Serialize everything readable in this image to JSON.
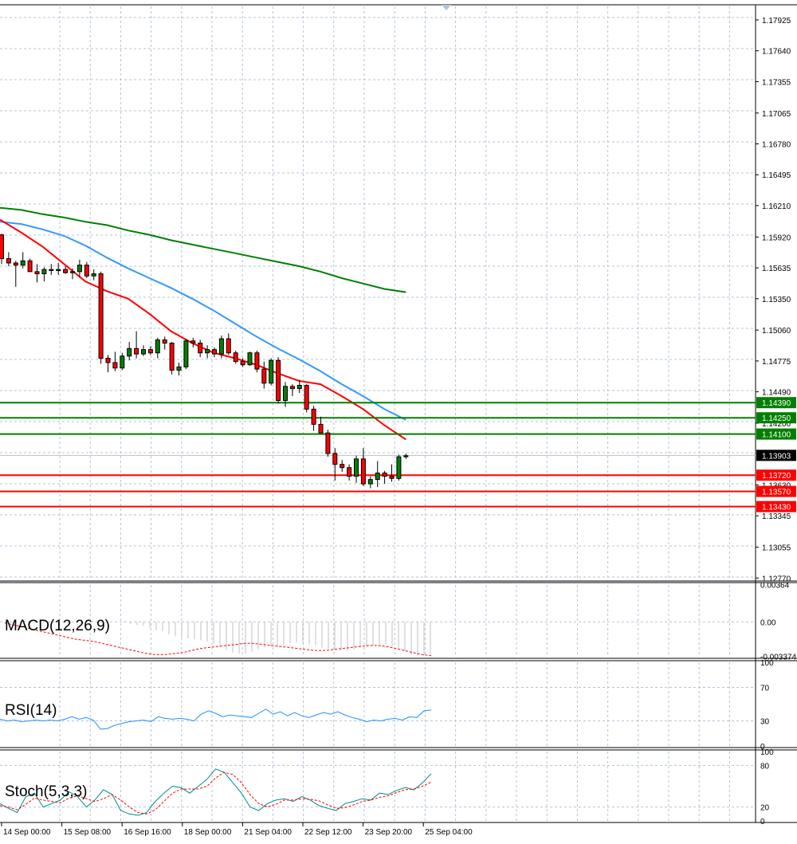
{
  "chart_data": [
    {
      "type": "candlestick",
      "panel": "price",
      "x_labels": [
        "14 Sep 00:00",
        "15 Sep 08:00",
        "16 Sep 16:00",
        "18 Sep 00:00",
        "21 Sep 04:00",
        "22 Sep 12:00",
        "23 Sep 20:00",
        "25 Sep 04:00"
      ],
      "y_ticks": [
        "1.17925",
        "1.17640",
        "1.17355",
        "1.17065",
        "1.16780",
        "1.16495",
        "1.16210",
        "1.15920",
        "1.15635",
        "1.15350",
        "1.15060",
        "1.14775",
        "1.14490",
        "1.14200",
        "1.13630",
        "1.13345",
        "1.13055",
        "1.12770"
      ],
      "ylim": [
        1.1275,
        1.1805
      ],
      "current_price": {
        "label": "1.13903",
        "value": 1.13903,
        "color": "#000000"
      },
      "levels": [
        {
          "label": "1.14390",
          "value": 1.1439,
          "color": "#008000"
        },
        {
          "label": "1.14250",
          "value": 1.1425,
          "color": "#008000"
        },
        {
          "label": "1.14100",
          "value": 1.141,
          "color": "#008000"
        },
        {
          "label": "1.13720",
          "value": 1.1372,
          "color": "#ff0000"
        },
        {
          "label": "1.13570",
          "value": 1.1357,
          "color": "#ff0000"
        },
        {
          "label": "1.13430",
          "value": 1.1343,
          "color": "#ff0000"
        }
      ],
      "moving_averages": [
        {
          "color": "#008000",
          "values": [
            1.1619,
            1.1617,
            1.1613,
            1.161,
            1.1606,
            1.1603,
            1.1598,
            1.1594,
            1.1589,
            1.1585,
            1.1581,
            1.1577,
            1.1573,
            1.1569,
            1.1565,
            1.156,
            1.1554,
            1.1549,
            1.1544,
            1.1541
          ]
        },
        {
          "color": "#3399ff",
          "values": [
            1.1606,
            1.1604,
            1.1599,
            1.1593,
            1.1584,
            1.1573,
            1.1563,
            1.1554,
            1.1545,
            1.1535,
            1.1524,
            1.1512,
            1.15,
            1.1489,
            1.1479,
            1.1468,
            1.1456,
            1.1445,
            1.1433,
            1.1423
          ]
        },
        {
          "color": "#ff0000",
          "values": [
            1.1608,
            1.1596,
            1.1583,
            1.1567,
            1.1551,
            1.1542,
            1.1535,
            1.1521,
            1.1505,
            1.1494,
            1.1485,
            1.148,
            1.1474,
            1.1466,
            1.1459,
            1.1456,
            1.1445,
            1.1433,
            1.1418,
            1.1405
          ]
        }
      ],
      "candles": [
        {
          "o": 1.1594,
          "h": 1.1595,
          "l": 1.1567,
          "c": 1.1572
        },
        {
          "o": 1.1572,
          "h": 1.1578,
          "l": 1.1565,
          "c": 1.1568
        },
        {
          "o": 1.1568,
          "h": 1.157,
          "l": 1.1546,
          "c": 1.1566
        },
        {
          "o": 1.1566,
          "h": 1.1578,
          "l": 1.1563,
          "c": 1.157
        },
        {
          "o": 1.157,
          "h": 1.1572,
          "l": 1.156,
          "c": 1.156
        },
        {
          "o": 1.156,
          "h": 1.1567,
          "l": 1.155,
          "c": 1.1558
        },
        {
          "o": 1.1558,
          "h": 1.1564,
          "l": 1.1551,
          "c": 1.1562
        },
        {
          "o": 1.1562,
          "h": 1.1567,
          "l": 1.1557,
          "c": 1.1561
        },
        {
          "o": 1.1561,
          "h": 1.1568,
          "l": 1.1557,
          "c": 1.1562
        },
        {
          "o": 1.1562,
          "h": 1.1565,
          "l": 1.1558,
          "c": 1.1559
        },
        {
          "o": 1.1559,
          "h": 1.1563,
          "l": 1.1553,
          "c": 1.156
        },
        {
          "o": 1.156,
          "h": 1.1571,
          "l": 1.1555,
          "c": 1.1566
        },
        {
          "o": 1.1566,
          "h": 1.1569,
          "l": 1.1554,
          "c": 1.1556
        },
        {
          "o": 1.1556,
          "h": 1.1562,
          "l": 1.1552,
          "c": 1.1558
        },
        {
          "o": 1.1558,
          "h": 1.156,
          "l": 1.1475,
          "c": 1.148
        },
        {
          "o": 1.148,
          "h": 1.1483,
          "l": 1.1467,
          "c": 1.1476
        },
        {
          "o": 1.1476,
          "h": 1.1486,
          "l": 1.1468,
          "c": 1.1471
        },
        {
          "o": 1.1471,
          "h": 1.1485,
          "l": 1.1469,
          "c": 1.1482
        },
        {
          "o": 1.1482,
          "h": 1.1495,
          "l": 1.1478,
          "c": 1.1489
        },
        {
          "o": 1.1489,
          "h": 1.1505,
          "l": 1.148,
          "c": 1.1484
        },
        {
          "o": 1.1484,
          "h": 1.1492,
          "l": 1.1482,
          "c": 1.1488
        },
        {
          "o": 1.1488,
          "h": 1.1491,
          "l": 1.1483,
          "c": 1.1485
        },
        {
          "o": 1.1485,
          "h": 1.1499,
          "l": 1.148,
          "c": 1.1497
        },
        {
          "o": 1.1497,
          "h": 1.15,
          "l": 1.1488,
          "c": 1.1494
        },
        {
          "o": 1.1494,
          "h": 1.1495,
          "l": 1.1465,
          "c": 1.1469
        },
        {
          "o": 1.1469,
          "h": 1.1476,
          "l": 1.1464,
          "c": 1.1472
        },
        {
          "o": 1.1472,
          "h": 1.1498,
          "l": 1.147,
          "c": 1.1496
        },
        {
          "o": 1.1496,
          "h": 1.1499,
          "l": 1.149,
          "c": 1.1494
        },
        {
          "o": 1.1494,
          "h": 1.1497,
          "l": 1.1481,
          "c": 1.1485
        },
        {
          "o": 1.1485,
          "h": 1.1492,
          "l": 1.148,
          "c": 1.1488
        },
        {
          "o": 1.1488,
          "h": 1.149,
          "l": 1.1481,
          "c": 1.1484
        },
        {
          "o": 1.1484,
          "h": 1.1501,
          "l": 1.148,
          "c": 1.1498
        },
        {
          "o": 1.1498,
          "h": 1.1503,
          "l": 1.1483,
          "c": 1.1485
        },
        {
          "o": 1.1485,
          "h": 1.1487,
          "l": 1.1475,
          "c": 1.1477
        },
        {
          "o": 1.1477,
          "h": 1.148,
          "l": 1.1472,
          "c": 1.1474
        },
        {
          "o": 1.1474,
          "h": 1.1486,
          "l": 1.1473,
          "c": 1.1485
        },
        {
          "o": 1.1485,
          "h": 1.1487,
          "l": 1.1467,
          "c": 1.147
        },
        {
          "o": 1.147,
          "h": 1.1477,
          "l": 1.1452,
          "c": 1.1457
        },
        {
          "o": 1.1457,
          "h": 1.148,
          "l": 1.1455,
          "c": 1.1478
        },
        {
          "o": 1.1478,
          "h": 1.1481,
          "l": 1.1438,
          "c": 1.1441
        },
        {
          "o": 1.1441,
          "h": 1.1458,
          "l": 1.1435,
          "c": 1.1454
        },
        {
          "o": 1.1454,
          "h": 1.1456,
          "l": 1.1445,
          "c": 1.1452
        },
        {
          "o": 1.1452,
          "h": 1.146,
          "l": 1.1448,
          "c": 1.1455
        },
        {
          "o": 1.1455,
          "h": 1.1456,
          "l": 1.143,
          "c": 1.1433
        },
        {
          "o": 1.1433,
          "h": 1.1436,
          "l": 1.1413,
          "c": 1.1419
        },
        {
          "o": 1.1419,
          "h": 1.1426,
          "l": 1.1414,
          "c": 1.1411
        },
        {
          "o": 1.1411,
          "h": 1.1414,
          "l": 1.1389,
          "c": 1.1392
        },
        {
          "o": 1.1392,
          "h": 1.1397,
          "l": 1.1367,
          "c": 1.1382
        },
        {
          "o": 1.1382,
          "h": 1.1386,
          "l": 1.1375,
          "c": 1.1379
        },
        {
          "o": 1.1379,
          "h": 1.1382,
          "l": 1.1367,
          "c": 1.1371
        },
        {
          "o": 1.1371,
          "h": 1.139,
          "l": 1.1365,
          "c": 1.1387
        },
        {
          "o": 1.1387,
          "h": 1.1397,
          "l": 1.1362,
          "c": 1.1364
        },
        {
          "o": 1.1364,
          "h": 1.1371,
          "l": 1.136,
          "c": 1.1368
        },
        {
          "o": 1.1368,
          "h": 1.1385,
          "l": 1.1361,
          "c": 1.1374
        },
        {
          "o": 1.1374,
          "h": 1.1376,
          "l": 1.1364,
          "c": 1.1371
        },
        {
          "o": 1.1371,
          "h": 1.1382,
          "l": 1.1366,
          "c": 1.1369
        },
        {
          "o": 1.1369,
          "h": 1.1391,
          "l": 1.1367,
          "c": 1.1389
        },
        {
          "o": 1.1389,
          "h": 1.1392,
          "l": 1.1387,
          "c": 1.139
        }
      ]
    },
    {
      "type": "bar",
      "panel": "macd",
      "label": "MACD(12,26,9)",
      "y_ticks": [
        "0.00364",
        "0.00",
        "-0.003374"
      ],
      "ylim": [
        -0.0034,
        0.0036
      ],
      "histogram_values": [
        -0.0001,
        -0.0002,
        -0.0003,
        -0.0004,
        -0.0006,
        -0.0008,
        -0.0009,
        -0.0012,
        -0.0014,
        -0.0015,
        -0.0016,
        -0.0017,
        -0.0018,
        -0.0019,
        -0.0021,
        -0.0024,
        -0.0027,
        -0.003,
        -0.0031,
        -0.0031,
        -0.0029,
        -0.0027,
        -0.0025,
        -0.0024,
        -0.0023,
        -0.0022,
        -0.0021,
        -0.002,
        -0.0021,
        -0.0022,
        -0.0023,
        -0.0025,
        -0.0026,
        -0.0027,
        -0.0028,
        -0.0028,
        -0.0027,
        -0.0025,
        -0.0024,
        -0.0023,
        -0.0022,
        -0.0022,
        -0.0024,
        -0.0026,
        -0.0029,
        -0.0032,
        -0.0033,
        -0.0033,
        -0.0032
      ],
      "signal_values": [
        -0.0001,
        -0.0003,
        -0.0005,
        -0.0007,
        -0.0009,
        -0.0011,
        -0.0013,
        -0.0015,
        -0.0017,
        -0.0018,
        -0.0019,
        -0.0021,
        -0.0023,
        -0.0025,
        -0.0027,
        -0.0029,
        -0.0031,
        -0.0032,
        -0.0032,
        -0.0031,
        -0.003,
        -0.0028,
        -0.0026,
        -0.0025,
        -0.0024,
        -0.0023,
        -0.0022,
        -0.0021,
        -0.0021,
        -0.0022,
        -0.0023,
        -0.0024,
        -0.0025,
        -0.0026,
        -0.0027,
        -0.0028,
        -0.0028,
        -0.0027,
        -0.0026,
        -0.0025,
        -0.0024,
        -0.0023,
        -0.0023,
        -0.0024,
        -0.0026,
        -0.0028,
        -0.003,
        -0.0032,
        -0.0033
      ],
      "histogram_color": "#c0c0c0",
      "signal_color": "#ff0000"
    },
    {
      "type": "line",
      "panel": "rsi",
      "label": "RSI(14)",
      "y_ticks": [
        "100",
        "70",
        "30",
        "0"
      ],
      "ylim": [
        0,
        100
      ],
      "color": "#1e90ff",
      "values": [
        32,
        30,
        31,
        29,
        30,
        31,
        30,
        31,
        30,
        32,
        35,
        32,
        34,
        31,
        20,
        21,
        25,
        27,
        29,
        30,
        31,
        29,
        35,
        33,
        32,
        33,
        32,
        30,
        38,
        42,
        39,
        35,
        37,
        36,
        35,
        34,
        39,
        44,
        38,
        41,
        36,
        40,
        36,
        34,
        37,
        40,
        38,
        41,
        37,
        34,
        32,
        29,
        31,
        30,
        32,
        33,
        31,
        35,
        34,
        42,
        43
      ]
    },
    {
      "type": "line",
      "panel": "stochastic",
      "label": "Stoch(5,3,3)",
      "y_ticks": [
        "100",
        "80",
        "20",
        "0"
      ],
      "ylim": [
        0,
        100
      ],
      "series": [
        {
          "color": "#008b8b",
          "values": [
            25,
            18,
            12,
            35,
            40,
            20,
            25,
            30,
            42,
            35,
            20,
            30,
            45,
            38,
            15,
            10,
            8,
            12,
            28,
            40,
            50,
            48,
            40,
            50,
            60,
            75,
            70,
            55,
            40,
            20,
            15,
            25,
            30,
            32,
            28,
            35,
            30,
            22,
            18,
            15,
            25,
            28,
            32,
            30,
            40,
            38,
            44,
            48,
            45,
            55,
            68
          ]
        },
        {
          "color": "#ff0000",
          "values": [
            22,
            20,
            16,
            24,
            33,
            30,
            28,
            26,
            33,
            36,
            32,
            28,
            32,
            38,
            30,
            20,
            12,
            10,
            16,
            28,
            40,
            46,
            46,
            46,
            50,
            62,
            70,
            67,
            55,
            38,
            25,
            20,
            24,
            30,
            30,
            32,
            31,
            29,
            23,
            18,
            19,
            23,
            28,
            30,
            34,
            36,
            41,
            45,
            46,
            50,
            56
          ]
        }
      ]
    }
  ]
}
